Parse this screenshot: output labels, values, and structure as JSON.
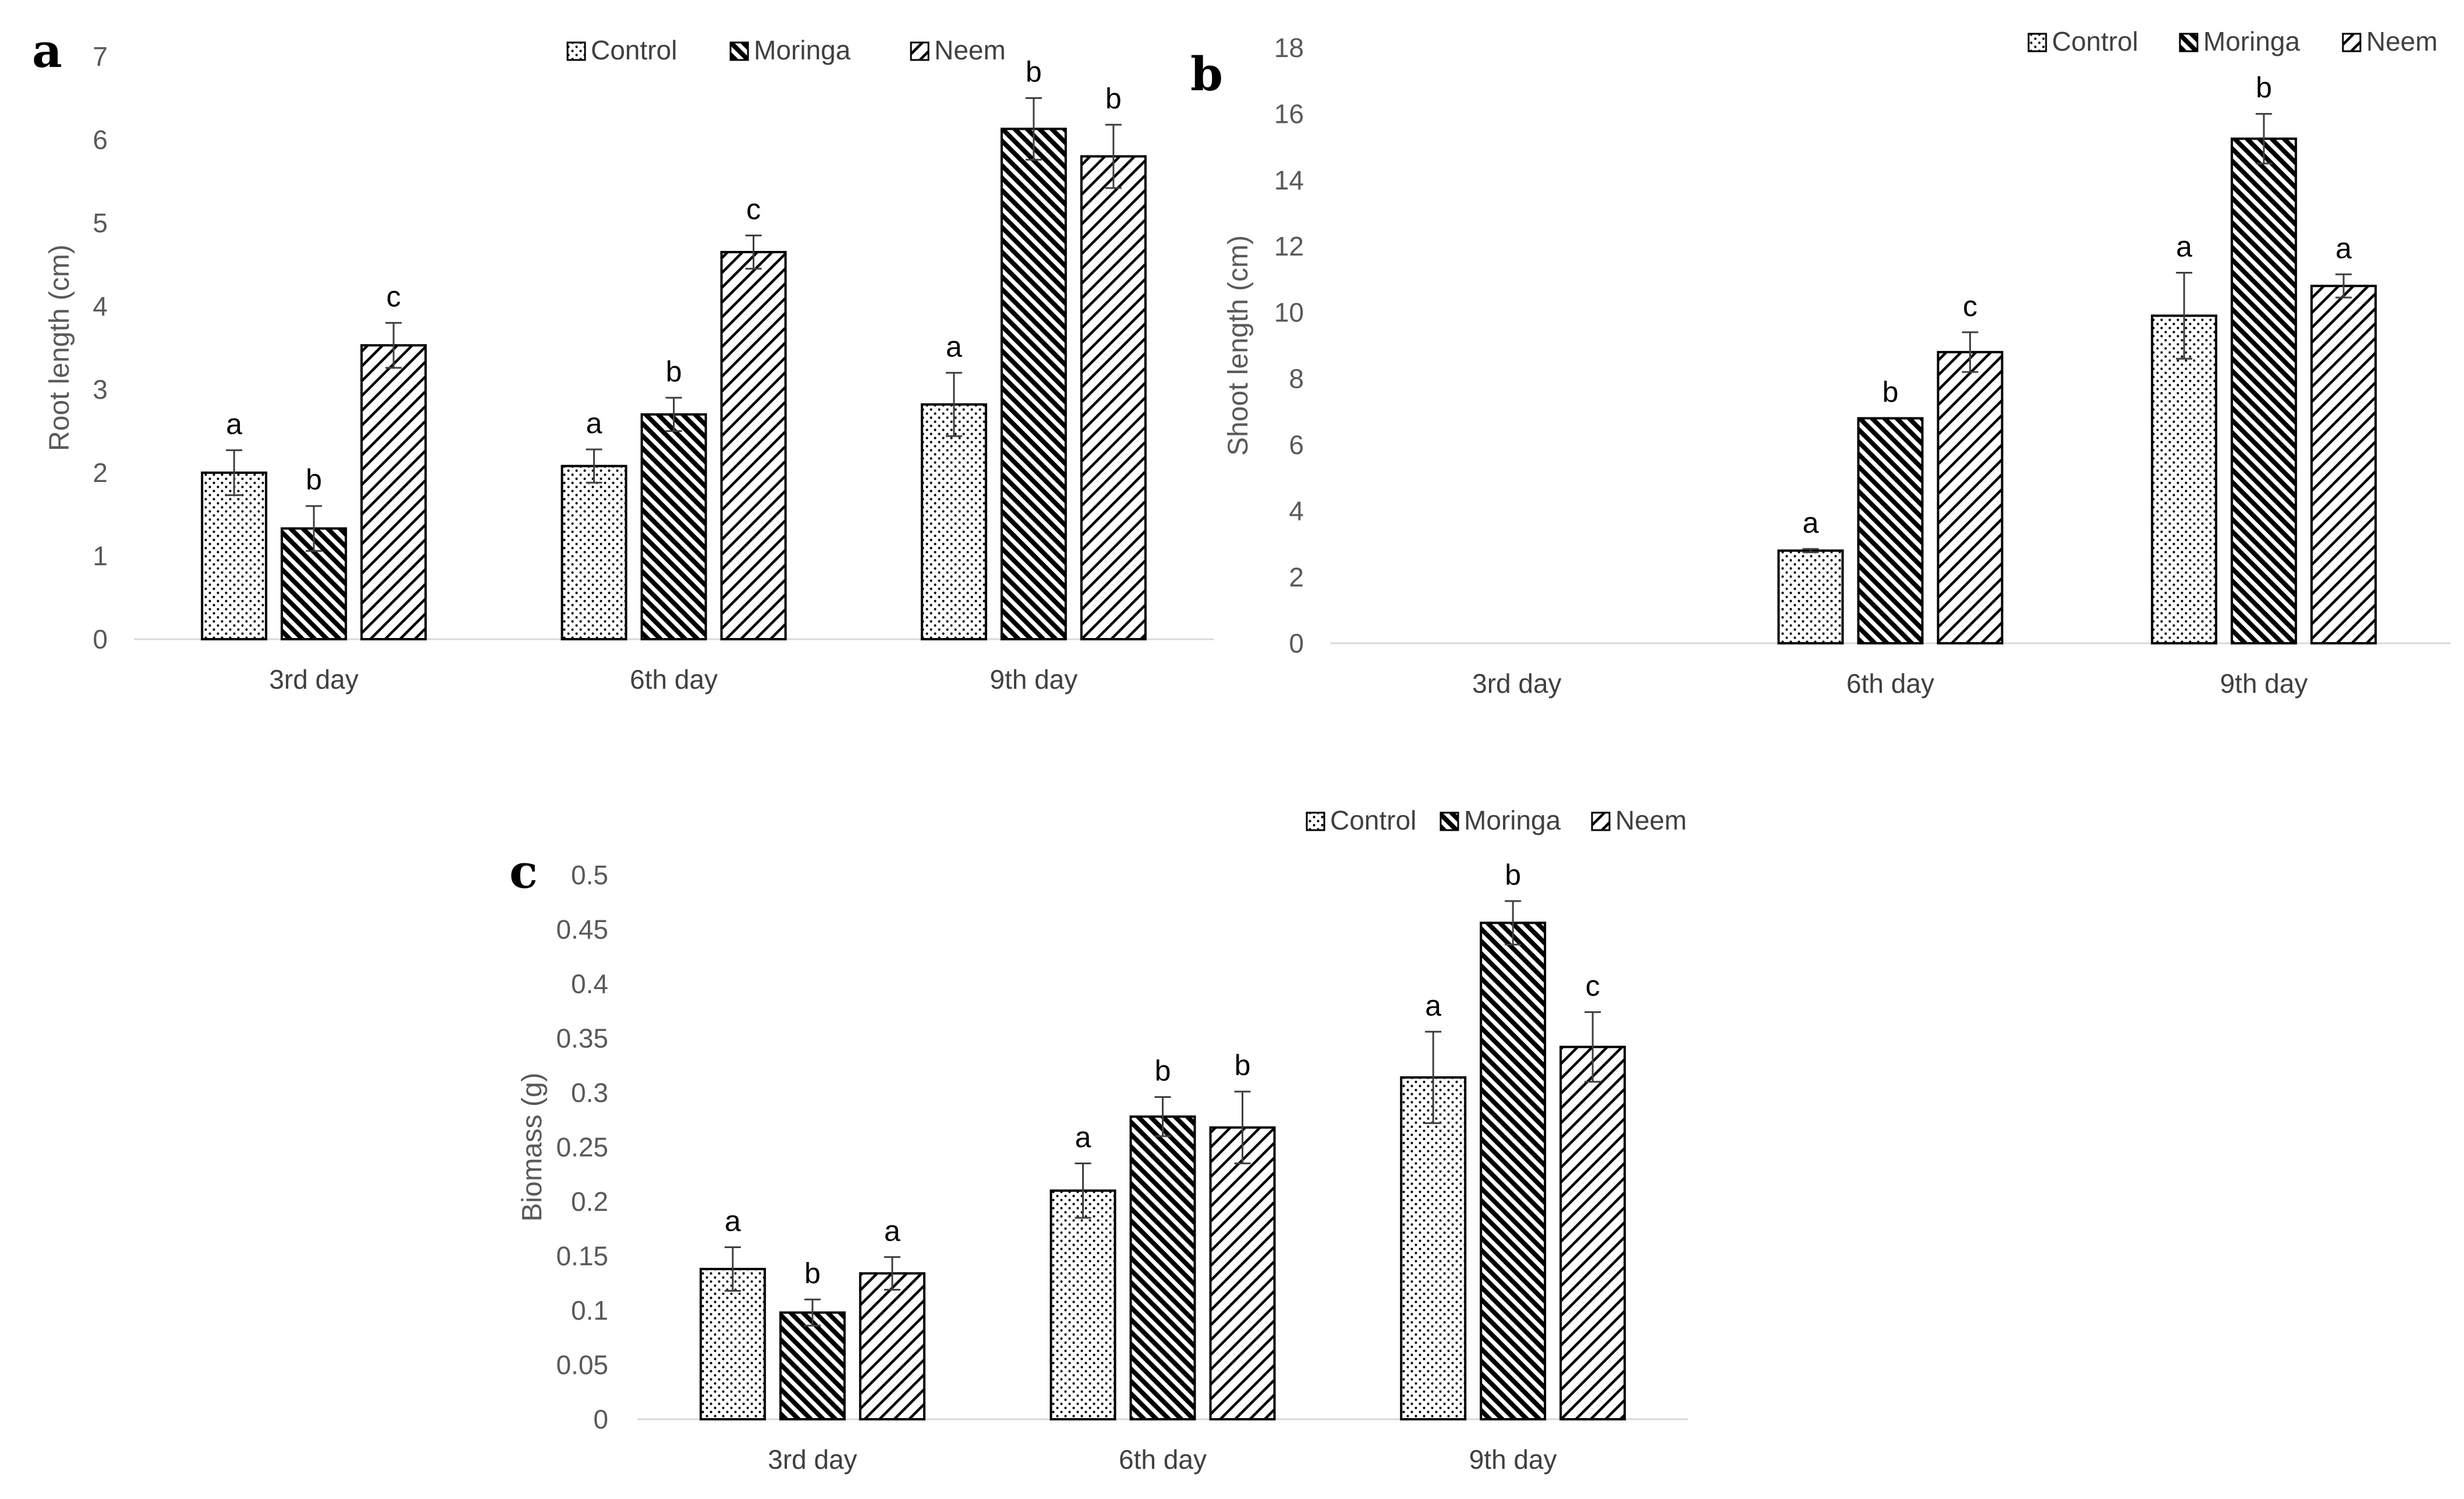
{
  "colors": {
    "bar_outline": "#000000",
    "pattern_ink": "#000000",
    "axis": "#d9d9d9",
    "text": "#595959"
  },
  "chart_data": [
    {
      "type": "bar",
      "panel": "a",
      "ylabel": "Root length (cm)",
      "xlabel": "",
      "ylim": [
        0,
        7
      ],
      "ytick_step": 1,
      "ytick_labels": [
        "0",
        "1",
        "2",
        "3",
        "4",
        "5",
        "6",
        "7"
      ],
      "legend_position": "top-center",
      "categories": [
        "3rd day",
        "6th day",
        "9th day"
      ],
      "series": [
        {
          "name": "Control",
          "pattern": "dots",
          "values": [
            2.0,
            2.08,
            2.82
          ],
          "errors": [
            0.27,
            0.2,
            0.38
          ],
          "labels": [
            "a",
            "a",
            "a"
          ]
        },
        {
          "name": "Moringa",
          "pattern": "dense-diag",
          "values": [
            1.33,
            2.7,
            6.13
          ],
          "errors": [
            0.27,
            0.2,
            0.37
          ],
          "labels": [
            "b",
            "b",
            "b"
          ]
        },
        {
          "name": "Neem",
          "pattern": "diag",
          "values": [
            3.53,
            4.65,
            5.8
          ],
          "errors": [
            0.27,
            0.2,
            0.38
          ],
          "labels": [
            "c",
            "c",
            "b"
          ]
        }
      ]
    },
    {
      "type": "bar",
      "panel": "b",
      "ylabel": "Shoot length (cm)",
      "xlabel": "",
      "ylim": [
        0,
        18
      ],
      "ytick_step": 2,
      "ytick_labels": [
        "0",
        "2",
        "4",
        "6",
        "8",
        "10",
        "12",
        "14",
        "16",
        "18"
      ],
      "legend_position": "top-right",
      "categories": [
        "3rd day",
        "6th day",
        "9th day"
      ],
      "series": [
        {
          "name": "Control",
          "pattern": "dots",
          "values": [
            0,
            2.8,
            9.9
          ],
          "errors": [
            0,
            0.05,
            1.3
          ],
          "labels": [
            "",
            "a",
            "a"
          ]
        },
        {
          "name": "Moringa",
          "pattern": "dense-diag",
          "values": [
            0,
            6.8,
            15.25
          ],
          "errors": [
            0,
            0.0,
            0.75
          ],
          "labels": [
            "",
            "b",
            "b"
          ]
        },
        {
          "name": "Neem",
          "pattern": "diag",
          "values": [
            0,
            8.8,
            10.8
          ],
          "errors": [
            0,
            0.6,
            0.35
          ],
          "labels": [
            "",
            "c",
            "a"
          ]
        }
      ]
    },
    {
      "type": "bar",
      "panel": "c",
      "ylabel": "Biomass (g)",
      "xlabel": "",
      "ylim": [
        0,
        0.5
      ],
      "ytick_step": 0.05,
      "ytick_labels": [
        "0",
        "0.05",
        "0.1",
        "0.15",
        "0.2",
        "0.25",
        "0.3",
        "0.35",
        "0.4",
        "0.45",
        "0.5"
      ],
      "legend_position": "top-right",
      "categories": [
        "3rd day",
        "6th day",
        "9th day"
      ],
      "series": [
        {
          "name": "Control",
          "pattern": "dots",
          "values": [
            0.138,
            0.21,
            0.314
          ],
          "errors": [
            0.02,
            0.025,
            0.042
          ],
          "labels": [
            "a",
            "a",
            "a"
          ]
        },
        {
          "name": "Moringa",
          "pattern": "dense-diag",
          "values": [
            0.098,
            0.278,
            0.456
          ],
          "errors": [
            0.012,
            0.018,
            0.02
          ],
          "labels": [
            "b",
            "b",
            "b"
          ]
        },
        {
          "name": "Neem",
          "pattern": "diag",
          "values": [
            0.134,
            0.268,
            0.342
          ],
          "errors": [
            0.015,
            0.033,
            0.032
          ],
          "labels": [
            "a",
            "b",
            "c"
          ]
        }
      ]
    }
  ]
}
